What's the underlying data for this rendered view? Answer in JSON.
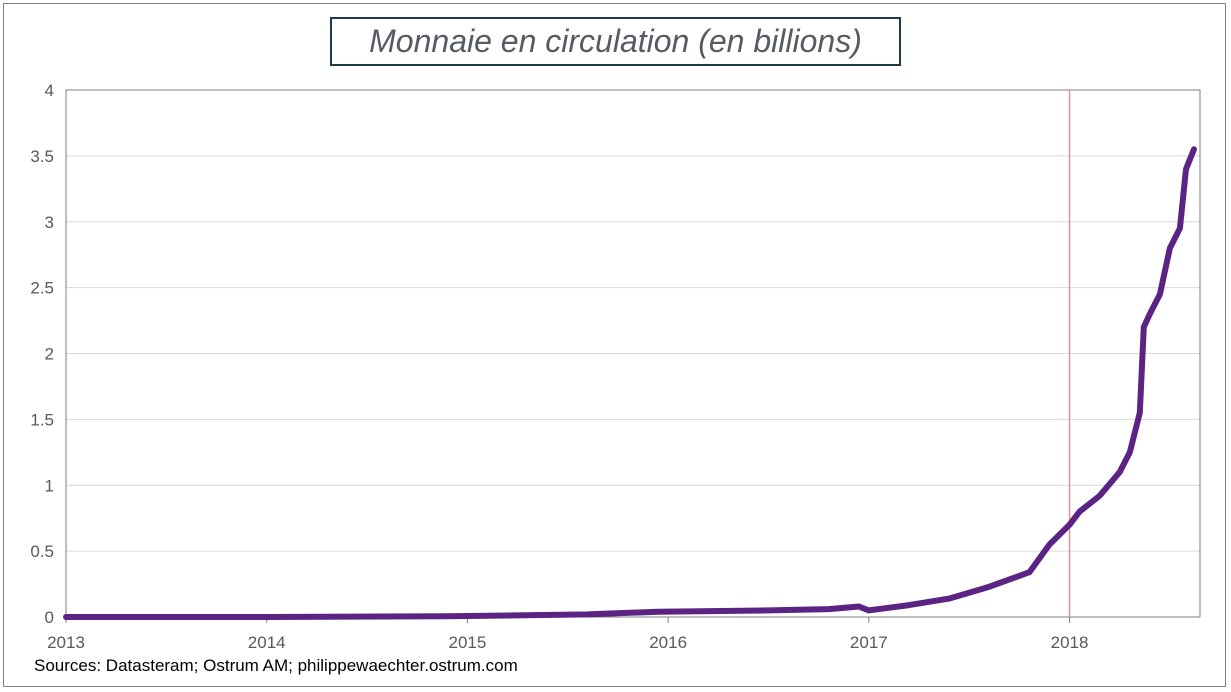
{
  "chart_data": {
    "type": "line",
    "title": "Monnaie en circulation (en billions)",
    "xlabel": "",
    "ylabel": "",
    "xlim": [
      2013,
      2018.65
    ],
    "ylim": [
      0,
      4
    ],
    "x_ticks": [
      "2013",
      "2014",
      "2015",
      "2016",
      "2017",
      "2018"
    ],
    "y_ticks": [
      "0",
      "0.5",
      "1",
      "1.5",
      "2",
      "2.5",
      "3",
      "3.5",
      "4"
    ],
    "grid": "horizontal",
    "legend": "none",
    "reference_line_x": 2018,
    "series": [
      {
        "color": "#5b2383",
        "x": [
          2013.0,
          2014.0,
          2014.9,
          2015.6,
          2015.95,
          2016.5,
          2016.8,
          2016.95,
          2017.0,
          2017.2,
          2017.4,
          2017.6,
          2017.8,
          2017.9,
          2018.0,
          2018.05,
          2018.15,
          2018.25,
          2018.3,
          2018.35,
          2018.37,
          2018.4,
          2018.45,
          2018.5,
          2018.55,
          2018.58,
          2018.62
        ],
        "y": [
          0.0,
          0.0,
          0.005,
          0.02,
          0.04,
          0.05,
          0.06,
          0.08,
          0.05,
          0.09,
          0.14,
          0.23,
          0.34,
          0.55,
          0.7,
          0.8,
          0.92,
          1.1,
          1.25,
          1.55,
          2.2,
          2.3,
          2.45,
          2.8,
          2.95,
          3.4,
          3.55
        ]
      }
    ],
    "reference_color": "#d99694",
    "grid_color": "#d9d9d9"
  },
  "source_note": "Sources: Datasteram; Ostrum AM;  philippewaechter.ostrum.com"
}
